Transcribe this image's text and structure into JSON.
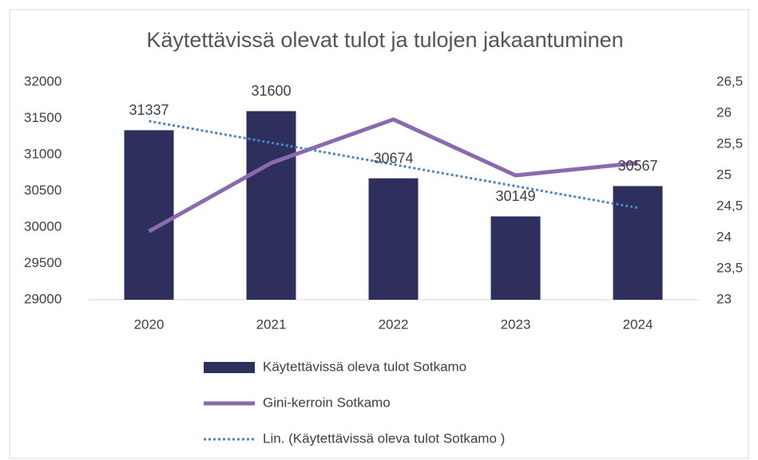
{
  "chart_data": {
    "type": "bar",
    "title": "Käytettävissä olevat tulot ja tulojen jakaantuminen",
    "categories": [
      "2020",
      "2021",
      "2022",
      "2023",
      "2024"
    ],
    "series": [
      {
        "name": "Käytettävissä oleva tulot Sotkamo",
        "color": "#2f2f5e",
        "type": "bar",
        "values": [
          31337,
          31600,
          30674,
          30149,
          30567
        ]
      },
      {
        "name": "Gini-kerroin Sotkamo",
        "color": "#8a6aae",
        "type": "line",
        "axis": "y2",
        "values": [
          24.1,
          25.2,
          25.9,
          25.0,
          25.2
        ]
      },
      {
        "name": "Lin. (Käytettävissä oleva tulot Sotkamo  )",
        "color": "#4a86c0",
        "type": "trend",
        "values": [
          31463,
          31164,
          30865,
          30566,
          30267
        ]
      }
    ],
    "ylim": [
      29000,
      32000
    ],
    "yticks": [
      29000,
      29500,
      30000,
      30500,
      31000,
      31500,
      32000
    ],
    "y2lim": [
      23,
      26.5
    ],
    "y2ticks": [
      23,
      {
        "value": 23.5,
        "label": "23,5"
      },
      24,
      {
        "value": 24.5,
        "label": "24,5"
      },
      25,
      {
        "value": 25.5,
        "label": "25,5"
      },
      26,
      {
        "value": 26.5,
        "label": "26,5"
      }
    ],
    "legend": "bottom"
  }
}
